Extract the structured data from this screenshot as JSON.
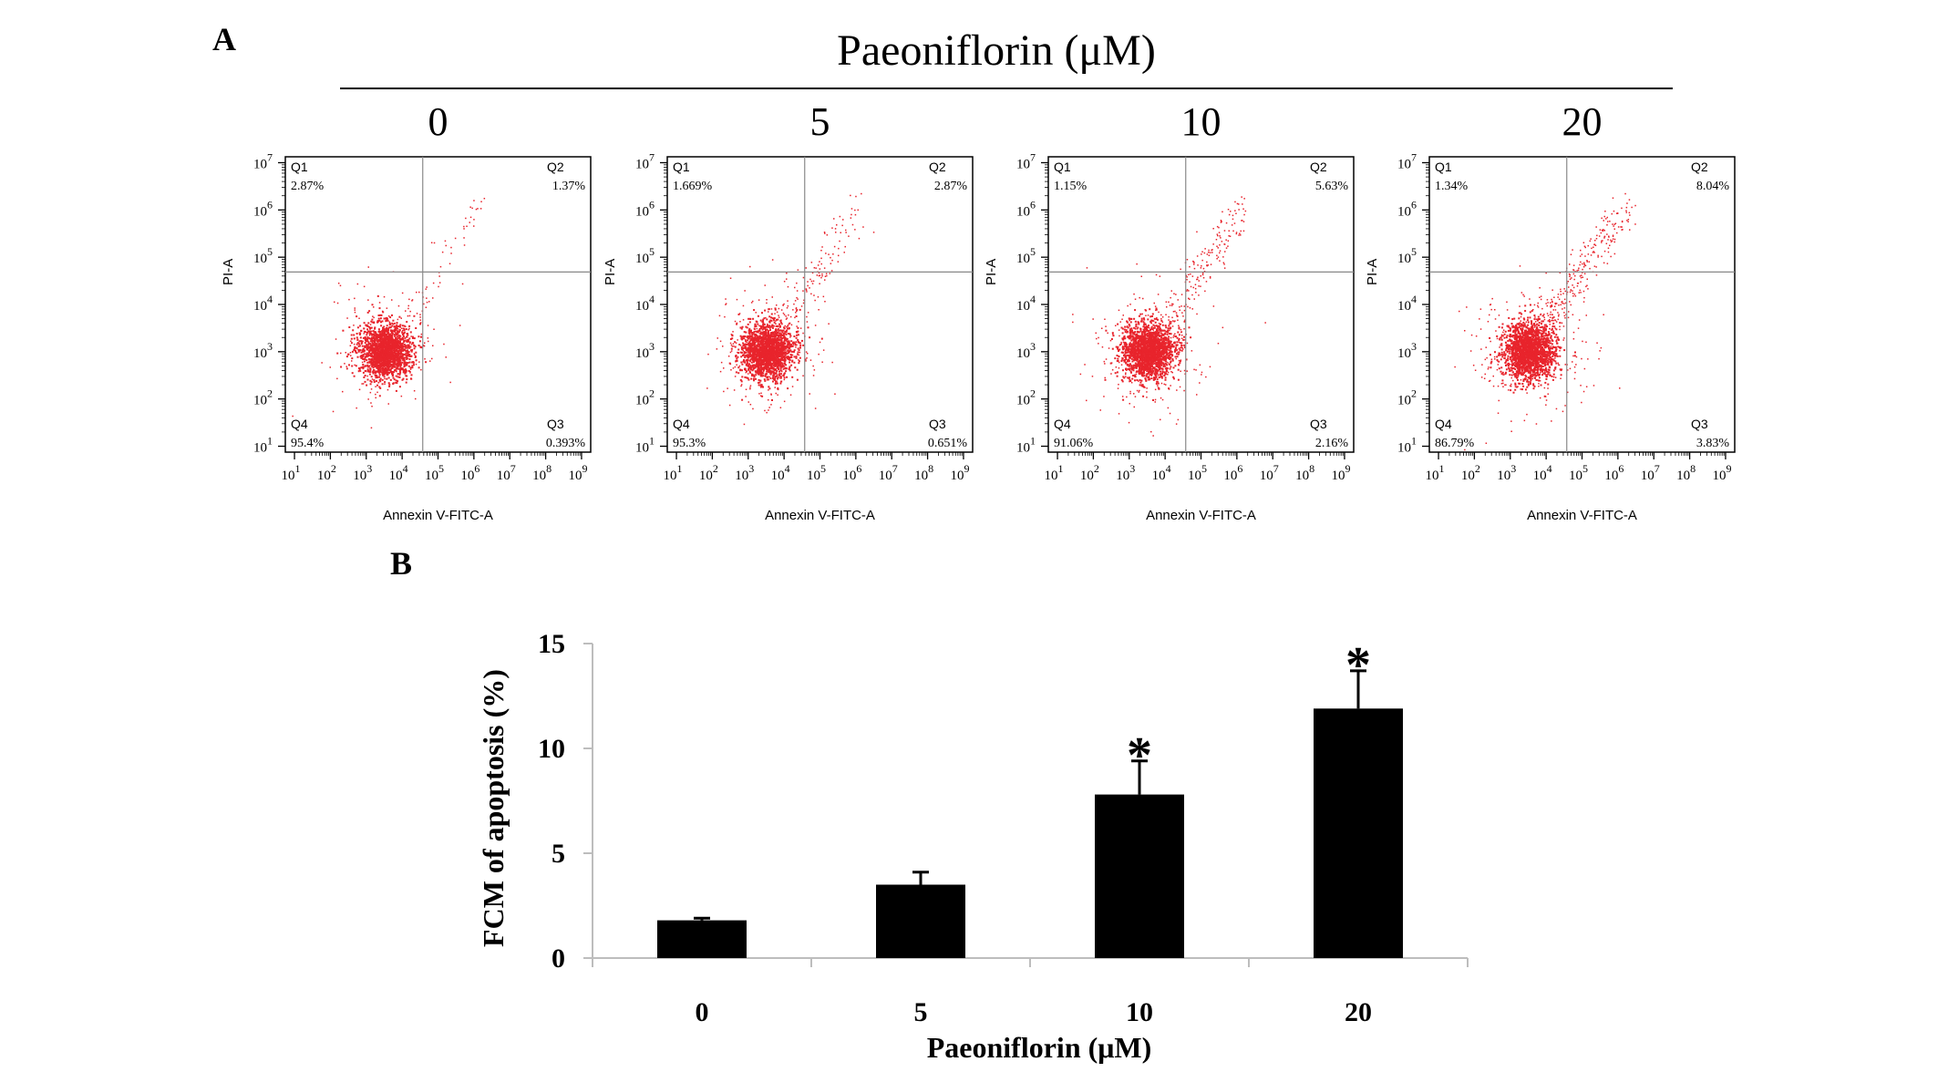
{
  "panel_a": {
    "letter": "A",
    "title": "Paeoniflorin (μM)",
    "plots": [
      {
        "dose": "0",
        "q1": "2.87%",
        "q2": "1.37%",
        "q3": "0.393%",
        "q4": "95.4%"
      },
      {
        "dose": "5",
        "q1": "1.669%",
        "q2": "2.87%",
        "q3": "0.651%",
        "q4": "95.3%"
      },
      {
        "dose": "10",
        "q1": "1.15%",
        "q2": "5.63%",
        "q3": "2.16%",
        "q4": "91.06%"
      },
      {
        "dose": "20",
        "q1": "1.34%",
        "q2": "8.04%",
        "q3": "3.83%",
        "q4": "86.79%"
      }
    ],
    "quadrant_names": [
      "Q1",
      "Q2",
      "Q3",
      "Q4"
    ],
    "xlabel": "Annexin V-FITC-A",
    "ylabel": "PI-A",
    "xtick_exponents": [
      "1",
      "2",
      "3",
      "4",
      "5",
      "6",
      "7",
      "8",
      "9"
    ],
    "ytick_exponents": [
      "1",
      "2",
      "3",
      "4",
      "5",
      "6",
      "7"
    ],
    "tick_base": "10",
    "dot_color": "#e8242c"
  },
  "panel_b": {
    "letter": "B"
  },
  "chart_data": {
    "type": "bar",
    "categories": [
      "0",
      "5",
      "10",
      "20"
    ],
    "values": [
      1.8,
      3.5,
      7.8,
      11.9
    ],
    "errors": [
      0.1,
      0.6,
      1.6,
      1.8
    ],
    "significance": [
      "",
      "",
      "*",
      "*"
    ],
    "xlabel": "Paeoniflorin (μM)",
    "ylabel": "FCM of apoptosis (%)",
    "ylim": [
      0,
      15
    ],
    "yticks": [
      0,
      5,
      10,
      15
    ],
    "bar_color": "#000000",
    "grid": false,
    "legend": "none"
  }
}
